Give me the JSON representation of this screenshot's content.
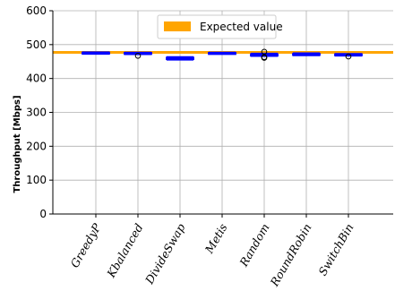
{
  "chart_data": {
    "type": "box",
    "title": "",
    "xlabel": "",
    "ylabel": "Throughput [Mbps]",
    "ylim": [
      0,
      600
    ],
    "yticks": [
      0,
      100,
      200,
      300,
      400,
      500,
      600
    ],
    "grid": "on",
    "legend": {
      "placement": "top-center",
      "label": "Expected value"
    },
    "expected_value": 477,
    "categories": [
      "GreedyP",
      "Kbalanced",
      "DivideSwap",
      "Metis",
      "Random",
      "RoundRobin",
      "SwitchBin"
    ],
    "boxes": [
      {
        "name": "GreedyP",
        "min": 472,
        "q1": 473,
        "median": 475,
        "q3": 477,
        "max": 478,
        "outliers": []
      },
      {
        "name": "Kbalanced",
        "min": 471,
        "q1": 472,
        "median": 474,
        "q3": 476,
        "max": 477,
        "outliers": [
          467
        ]
      },
      {
        "name": "DivideSwap",
        "min": 455,
        "q1": 457,
        "median": 459,
        "q3": 462,
        "max": 464,
        "outliers": []
      },
      {
        "name": "Metis",
        "min": 472,
        "q1": 473,
        "median": 475,
        "q3": 476,
        "max": 477,
        "outliers": []
      },
      {
        "name": "Random",
        "min": 466,
        "q1": 467,
        "median": 469,
        "q3": 472,
        "max": 474,
        "outliers": [
          461,
          463,
          479
        ]
      },
      {
        "name": "RoundRobin",
        "min": 468,
        "q1": 469,
        "median": 471,
        "q3": 473,
        "max": 475,
        "outliers": []
      },
      {
        "name": "SwitchBin",
        "min": 467,
        "q1": 468,
        "median": 470,
        "q3": 472,
        "max": 473,
        "outliers": [
          465
        ]
      }
    ],
    "colors": {
      "box": "#0000ff",
      "expected": "#ffa500",
      "grid": "#b0b0b0",
      "axis": "#000000"
    }
  }
}
